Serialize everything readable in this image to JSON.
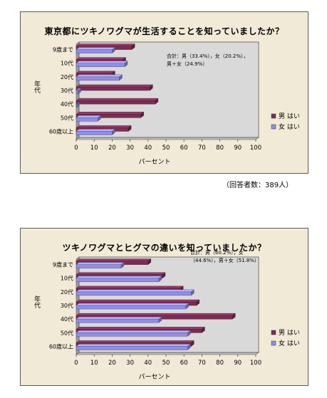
{
  "respondents_note": "（回答者数：389人）",
  "chart_data": [
    {
      "type": "bar",
      "orientation": "horizontal",
      "title": "東京都にツキノワグマが生活することを知っていましたか？",
      "xlabel": "パーセント",
      "ylabel": "年代",
      "categories": [
        "9歳まで",
        "10代",
        "20代",
        "30代",
        "40代",
        "50代",
        "60歳以上"
      ],
      "series": [
        {
          "name": "男 はい",
          "color": "#7b2d53",
          "values": [
            31,
            26,
            20,
            41,
            44,
            36,
            29
          ]
        },
        {
          "name": "女 はい",
          "color": "#8f8fe8",
          "values": [
            20,
            27,
            24,
            1,
            0,
            12,
            20
          ]
        }
      ],
      "xlim": [
        0,
        100
      ],
      "xticks": [
        0,
        10,
        20,
        30,
        40,
        50,
        60,
        70,
        80,
        90,
        100
      ],
      "annotation": [
        "合計：男（33.4%），女（20.2%），",
        "男＋女（24.9%）"
      ],
      "legend_position": "right"
    },
    {
      "type": "bar",
      "orientation": "horizontal",
      "title": "ツキノワグマとヒグマの違いを知っていましたか？",
      "xlabel": "パーセント",
      "ylabel": "年代",
      "categories": [
        "9歳まで",
        "10代",
        "20代",
        "30代",
        "40代",
        "50代",
        "60歳以上"
      ],
      "series": [
        {
          "name": "男 はい",
          "color": "#7b2d53",
          "values": [
            40,
            48,
            58,
            67,
            87,
            70,
            64
          ]
        },
        {
          "name": "女 はい",
          "color": "#8f8fe8",
          "values": [
            25,
            46,
            64,
            61,
            46,
            62,
            62
          ]
        }
      ],
      "xlim": [
        0,
        100
      ],
      "xticks": [
        0,
        10,
        20,
        30,
        40,
        50,
        60,
        70,
        80,
        90,
        100
      ],
      "annotation": [
        "合計：男（60.2%），女",
        "（44.6%），男＋女（51.8%）"
      ],
      "legend_position": "right"
    }
  ]
}
